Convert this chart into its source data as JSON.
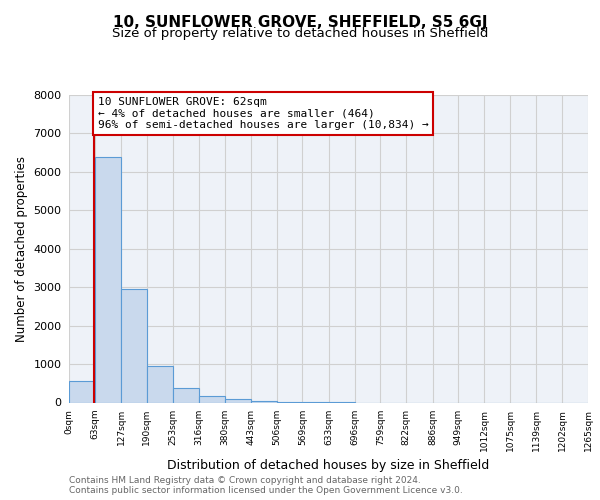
{
  "title": "10, SUNFLOWER GROVE, SHEFFIELD, S5 6GJ",
  "subtitle": "Size of property relative to detached houses in Sheffield",
  "xlabel": "Distribution of detached houses by size in Sheffield",
  "ylabel": "Number of detached properties",
  "bin_edges": [
    0,
    63,
    127,
    190,
    253,
    316,
    380,
    443,
    506,
    569,
    633,
    696,
    759,
    822,
    886,
    949,
    1012,
    1075,
    1139,
    1202,
    1265
  ],
  "bin_counts": [
    550,
    6400,
    2950,
    950,
    380,
    160,
    80,
    30,
    5,
    2,
    1,
    0,
    0,
    0,
    0,
    0,
    0,
    0,
    0,
    0
  ],
  "bar_color": "#c9d9ed",
  "bar_edge_color": "#5b9bd5",
  "property_size": 62,
  "red_line_color": "#cc0000",
  "annotation_text": "10 SUNFLOWER GROVE: 62sqm\n← 4% of detached houses are smaller (464)\n96% of semi-detached houses are larger (10,834) →",
  "annotation_box_color": "#ffffff",
  "annotation_box_edge_color": "#cc0000",
  "ylim": [
    0,
    8000
  ],
  "yticks": [
    0,
    1000,
    2000,
    3000,
    4000,
    5000,
    6000,
    7000,
    8000
  ],
  "xtick_labels": [
    "0sqm",
    "63sqm",
    "127sqm",
    "190sqm",
    "253sqm",
    "316sqm",
    "380sqm",
    "443sqm",
    "506sqm",
    "569sqm",
    "633sqm",
    "696sqm",
    "759sqm",
    "822sqm",
    "886sqm",
    "949sqm",
    "1012sqm",
    "1075sqm",
    "1139sqm",
    "1202sqm",
    "1265sqm"
  ],
  "grid_color": "#d0d0d0",
  "bg_color": "#eef2f8",
  "footer_text": "Contains HM Land Registry data © Crown copyright and database right 2024.\nContains public sector information licensed under the Open Government Licence v3.0.",
  "title_fontsize": 11,
  "subtitle_fontsize": 9.5,
  "xlabel_fontsize": 9,
  "ylabel_fontsize": 8.5,
  "footer_fontsize": 6.5,
  "annotation_fontsize": 8
}
